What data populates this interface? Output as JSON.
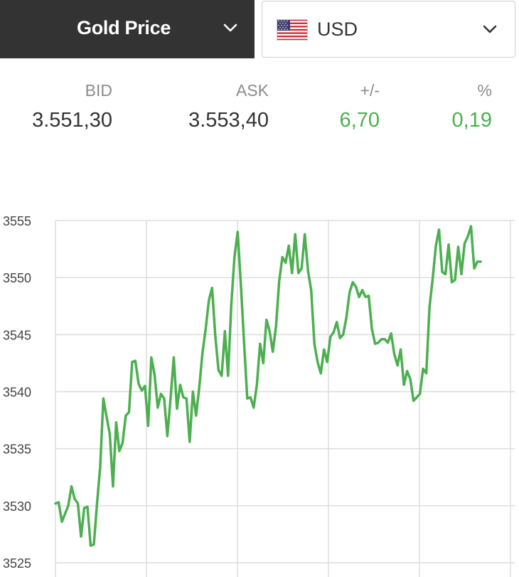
{
  "header": {
    "product_label": "Gold Price",
    "currency_label": "USD",
    "product_icon": "chevron-down-icon",
    "currency_icon": "chevron-down-icon",
    "flag_icon": "us-flag-icon"
  },
  "quote": {
    "bid_label": "BID",
    "bid_value": "3.551,30",
    "ask_label": "ASK",
    "ask_value": "3.553,40",
    "change_label": "+/-",
    "change_value": "6,70",
    "percent_label": "%",
    "percent_value": "0,19",
    "positive_color": "#4caf50"
  },
  "chart_data": {
    "type": "line",
    "title": "",
    "xlabel": "",
    "ylabel": "",
    "ylim": [
      3525,
      3555
    ],
    "yticks": [
      3525,
      3530,
      3535,
      3540,
      3545,
      3550,
      3555
    ],
    "grid": true,
    "legend": "none",
    "color": "#4caf50",
    "series": [
      {
        "values": [
          3530.2,
          3530.3,
          3528.6,
          3529.3,
          3530.0,
          3531.7,
          3530.6,
          3530.2,
          3527.3,
          3529.8,
          3529.9,
          3526.5,
          3526.6,
          3530.2,
          3533.4,
          3539.4,
          3537.8,
          3536.3,
          3531.7,
          3537.3,
          3534.8,
          3535.5,
          3537.9,
          3538.2,
          3542.6,
          3542.7,
          3540.7,
          3540.1,
          3540.5,
          3537.0,
          3543.0,
          3541.5,
          3538.6,
          3539.8,
          3539.4,
          3536.1,
          3539.4,
          3543.0,
          3538.5,
          3540.6,
          3539.5,
          3539.4,
          3535.6,
          3540.0,
          3537.9,
          3540.4,
          3543.4,
          3545.5,
          3548.0,
          3549.1,
          3544.9,
          3541.9,
          3541.4,
          3545.3,
          3541.4,
          3547.6,
          3551.8,
          3554.0,
          3549.4,
          3544.3,
          3539.4,
          3539.5,
          3538.6,
          3540.6,
          3544.2,
          3542.5,
          3546.3,
          3545.3,
          3543.5,
          3545.7,
          3549.7,
          3551.8,
          3551.3,
          3552.8,
          3550.4,
          3553.8,
          3550.4,
          3550.8,
          3553.8,
          3550.6,
          3548.9,
          3544.2,
          3542.6,
          3541.6,
          3543.7,
          3542.6,
          3544.8,
          3545.2,
          3546.1,
          3544.7,
          3545.0,
          3546.5,
          3548.7,
          3549.6,
          3549.2,
          3548.3,
          3548.9,
          3548.3,
          3548.4,
          3545.5,
          3544.2,
          3544.3,
          3544.6,
          3544.6,
          3544.3,
          3545.1,
          3543.3,
          3542.3,
          3543.7,
          3540.6,
          3541.8,
          3541.1,
          3539.2,
          3539.5,
          3539.8,
          3542.0,
          3541.6,
          3547.4,
          3549.9,
          3552.8,
          3554.2,
          3550.5,
          3550.3,
          3552.9,
          3549.6,
          3549.8,
          3552.7,
          3550.3,
          3553.0,
          3553.6,
          3554.5,
          3550.8,
          3551.4,
          3551.4
        ]
      }
    ]
  }
}
